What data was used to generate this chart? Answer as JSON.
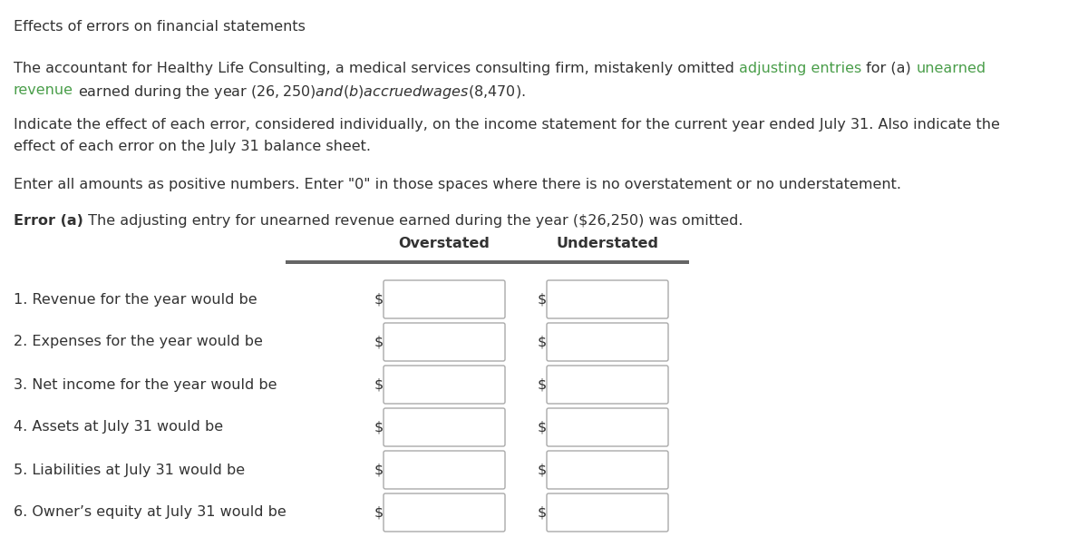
{
  "title": "Effects of errors on financial statements",
  "line1_parts": [
    {
      "text": "The accountant for Healthy Life Consulting, a medical services consulting firm, mistakenly omitted ",
      "color": "#333333"
    },
    {
      "text": "adjusting entries",
      "color": "#4a9e4a"
    },
    {
      "text": " for (a) ",
      "color": "#333333"
    },
    {
      "text": "unearned",
      "color": "#4a9e4a"
    }
  ],
  "line2_parts": [
    {
      "text": "revenue",
      "color": "#4a9e4a"
    },
    {
      "text": " earned during the year ($26,250) and (b) accrued wages ($8,470).",
      "color": "#333333"
    }
  ],
  "paragraph2_line1": "Indicate the effect of each error, considered individually, on the income statement for the current year ended July 31. Also indicate the",
  "paragraph2_line2": "effect of each error on the July 31 balance sheet.",
  "paragraph3": "Enter all amounts as positive numbers. Enter \"0\" in those spaces where there is no overstatement or no understatement.",
  "error_label_bold": "Error (a)",
  "error_label_normal": " The adjusting entry for unearned revenue earned during the year ($26,250) was omitted.",
  "col_header1": "Overstated",
  "col_header2": "Understated",
  "rows": [
    "1. Revenue for the year would be",
    "2. Expenses for the year would be",
    "3. Net income for the year would be",
    "4. Assets at July 31 would be",
    "5. Liabilities at July 31 would be",
    "6. Owner’s equity at July 31 would be"
  ],
  "bg_color": "#ffffff",
  "text_color": "#333333",
  "font_size": 11.5,
  "box_edge_color": "#aaaaaa",
  "header_line_color": "#555555",
  "fig_width": 12.0,
  "fig_height": 5.92,
  "dpi": 100
}
